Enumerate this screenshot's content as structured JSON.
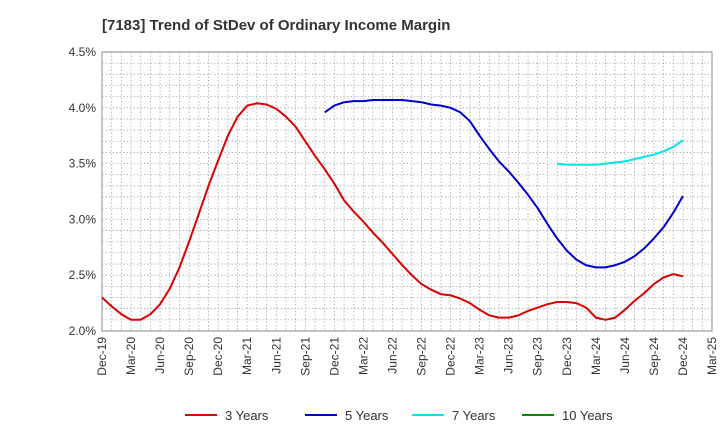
{
  "chart_data": {
    "type": "line",
    "title": "[7183]  Trend of StDev of Ordinary Income Margin",
    "xlabel": "",
    "ylabel": "",
    "ylim": [
      2.0,
      4.5
    ],
    "y_ticks": [
      "2.0%",
      "2.5%",
      "3.0%",
      "3.5%",
      "4.0%",
      "4.5%"
    ],
    "y_tick_values": [
      2.0,
      2.5,
      3.0,
      3.5,
      4.0,
      4.5
    ],
    "x_tick_labels": [
      "Dec-19",
      "Mar-20",
      "Jun-20",
      "Sep-20",
      "Dec-20",
      "Mar-21",
      "Jun-21",
      "Sep-21",
      "Dec-21",
      "Mar-22",
      "Jun-22",
      "Sep-22",
      "Dec-22",
      "Mar-23",
      "Jun-23",
      "Sep-23",
      "Dec-23",
      "Mar-24",
      "Jun-24",
      "Sep-24",
      "Dec-24",
      "Mar-25"
    ],
    "x_unit": "month",
    "grid": true,
    "legend_position": "bottom",
    "series": [
      {
        "name": "3 Years",
        "color": "#dd0000",
        "points": [
          [
            "2019-12",
            2.3
          ],
          [
            "2020-01",
            2.22
          ],
          [
            "2020-02",
            2.15
          ],
          [
            "2020-03",
            2.1
          ],
          [
            "2020-04",
            2.1
          ],
          [
            "2020-05",
            2.15
          ],
          [
            "2020-06",
            2.24
          ],
          [
            "2020-07",
            2.38
          ],
          [
            "2020-08",
            2.57
          ],
          [
            "2020-09",
            2.8
          ],
          [
            "2020-10",
            3.05
          ],
          [
            "2020-11",
            3.3
          ],
          [
            "2020-12",
            3.53
          ],
          [
            "2021-01",
            3.75
          ],
          [
            "2021-02",
            3.92
          ],
          [
            "2021-03",
            4.02
          ],
          [
            "2021-04",
            4.04
          ],
          [
            "2021-05",
            4.03
          ],
          [
            "2021-06",
            3.99
          ],
          [
            "2021-07",
            3.92
          ],
          [
            "2021-08",
            3.83
          ],
          [
            "2021-09",
            3.7
          ],
          [
            "2021-10",
            3.57
          ],
          [
            "2021-11",
            3.45
          ],
          [
            "2021-12",
            3.32
          ],
          [
            "2022-01",
            3.17
          ],
          [
            "2022-02",
            3.07
          ],
          [
            "2022-03",
            2.98
          ],
          [
            "2022-04",
            2.88
          ],
          [
            "2022-05",
            2.79
          ],
          [
            "2022-06",
            2.69
          ],
          [
            "2022-07",
            2.59
          ],
          [
            "2022-08",
            2.5
          ],
          [
            "2022-09",
            2.42
          ],
          [
            "2022-10",
            2.37
          ],
          [
            "2022-11",
            2.33
          ],
          [
            "2022-12",
            2.32
          ],
          [
            "2023-01",
            2.29
          ],
          [
            "2023-02",
            2.25
          ],
          [
            "2023-03",
            2.19
          ],
          [
            "2023-04",
            2.14
          ],
          [
            "2023-05",
            2.12
          ],
          [
            "2023-06",
            2.12
          ],
          [
            "2023-07",
            2.14
          ],
          [
            "2023-08",
            2.18
          ],
          [
            "2023-09",
            2.21
          ],
          [
            "2023-10",
            2.24
          ],
          [
            "2023-11",
            2.26
          ],
          [
            "2023-12",
            2.26
          ],
          [
            "2024-01",
            2.25
          ],
          [
            "2024-02",
            2.21
          ],
          [
            "2024-03",
            2.12
          ],
          [
            "2024-04",
            2.1
          ],
          [
            "2024-05",
            2.12
          ],
          [
            "2024-06",
            2.19
          ],
          [
            "2024-07",
            2.27
          ],
          [
            "2024-08",
            2.34
          ],
          [
            "2024-09",
            2.42
          ],
          [
            "2024-10",
            2.48
          ],
          [
            "2024-11",
            2.51
          ],
          [
            "2024-12",
            2.49
          ]
        ]
      },
      {
        "name": "5 Years",
        "color": "#0000cc",
        "points": [
          [
            "2021-11",
            3.96
          ],
          [
            "2021-12",
            4.02
          ],
          [
            "2022-01",
            4.05
          ],
          [
            "2022-02",
            4.06
          ],
          [
            "2022-03",
            4.06
          ],
          [
            "2022-04",
            4.07
          ],
          [
            "2022-05",
            4.07
          ],
          [
            "2022-06",
            4.07
          ],
          [
            "2022-07",
            4.07
          ],
          [
            "2022-08",
            4.06
          ],
          [
            "2022-09",
            4.05
          ],
          [
            "2022-10",
            4.03
          ],
          [
            "2022-11",
            4.02
          ],
          [
            "2022-12",
            4.0
          ],
          [
            "2023-01",
            3.96
          ],
          [
            "2023-02",
            3.88
          ],
          [
            "2023-03",
            3.75
          ],
          [
            "2023-04",
            3.63
          ],
          [
            "2023-05",
            3.52
          ],
          [
            "2023-06",
            3.43
          ],
          [
            "2023-07",
            3.33
          ],
          [
            "2023-08",
            3.22
          ],
          [
            "2023-09",
            3.1
          ],
          [
            "2023-10",
            2.96
          ],
          [
            "2023-11",
            2.83
          ],
          [
            "2023-12",
            2.72
          ],
          [
            "2024-01",
            2.64
          ],
          [
            "2024-02",
            2.59
          ],
          [
            "2024-03",
            2.57
          ],
          [
            "2024-04",
            2.57
          ],
          [
            "2024-05",
            2.59
          ],
          [
            "2024-06",
            2.62
          ],
          [
            "2024-07",
            2.67
          ],
          [
            "2024-08",
            2.74
          ],
          [
            "2024-09",
            2.83
          ],
          [
            "2024-10",
            2.93
          ],
          [
            "2024-11",
            3.06
          ],
          [
            "2024-12",
            3.21
          ]
        ]
      },
      {
        "name": "7 Years",
        "color": "#00e5e5",
        "points": [
          [
            "2023-11",
            3.5
          ],
          [
            "2023-12",
            3.49
          ],
          [
            "2024-01",
            3.49
          ],
          [
            "2024-02",
            3.49
          ],
          [
            "2024-03",
            3.49
          ],
          [
            "2024-04",
            3.5
          ],
          [
            "2024-05",
            3.51
          ],
          [
            "2024-06",
            3.52
          ],
          [
            "2024-07",
            3.54
          ],
          [
            "2024-08",
            3.56
          ],
          [
            "2024-09",
            3.58
          ],
          [
            "2024-10",
            3.61
          ],
          [
            "2024-11",
            3.65
          ],
          [
            "2024-12",
            3.71
          ]
        ]
      },
      {
        "name": "10 Years",
        "color": "#008800",
        "points": []
      }
    ]
  }
}
